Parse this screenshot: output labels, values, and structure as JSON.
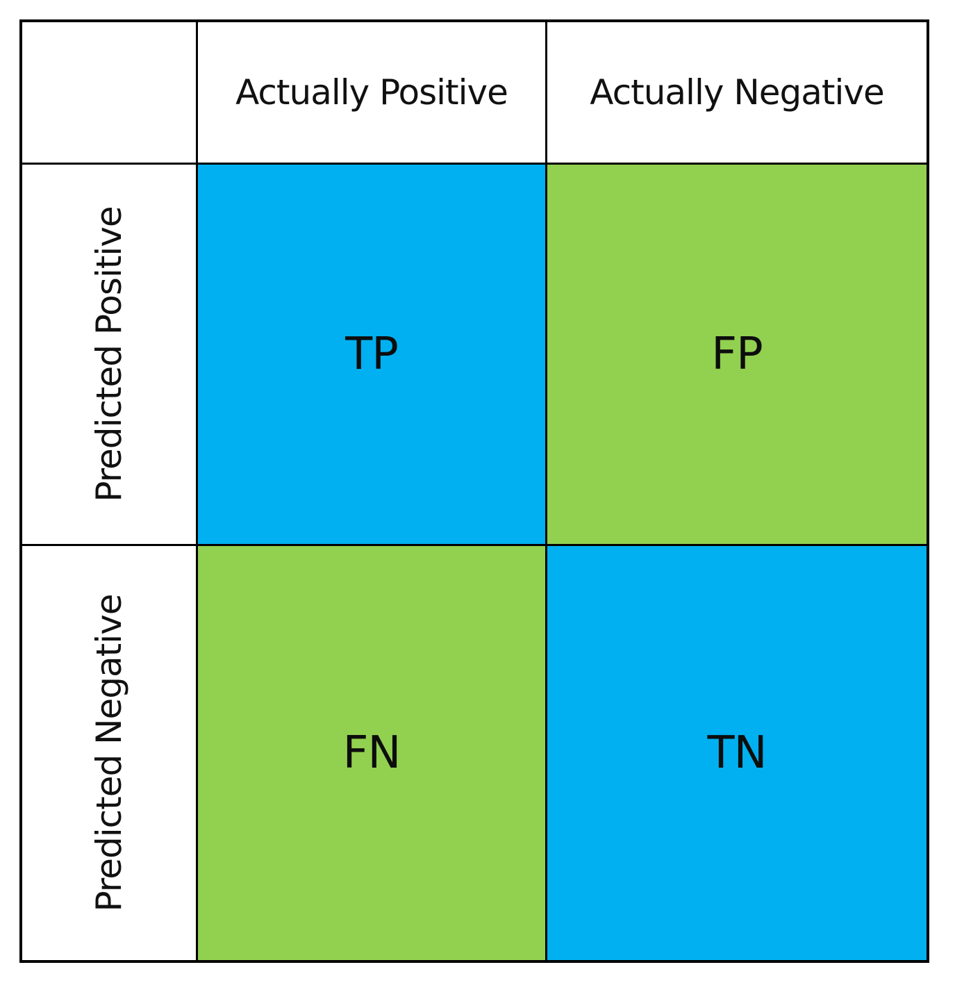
{
  "matrix": {
    "corner": "",
    "columns": [
      "Actually Positive",
      "Actually Negative"
    ],
    "rows": [
      "Predicted Positive",
      "Predicted Negative"
    ],
    "cells": [
      {
        "label": "TP",
        "color": "#00B0F0"
      },
      {
        "label": "FP",
        "color": "#92D050"
      },
      {
        "label": "FN",
        "color": "#92D050"
      },
      {
        "label": "TN",
        "color": "#00B0F0"
      }
    ]
  }
}
